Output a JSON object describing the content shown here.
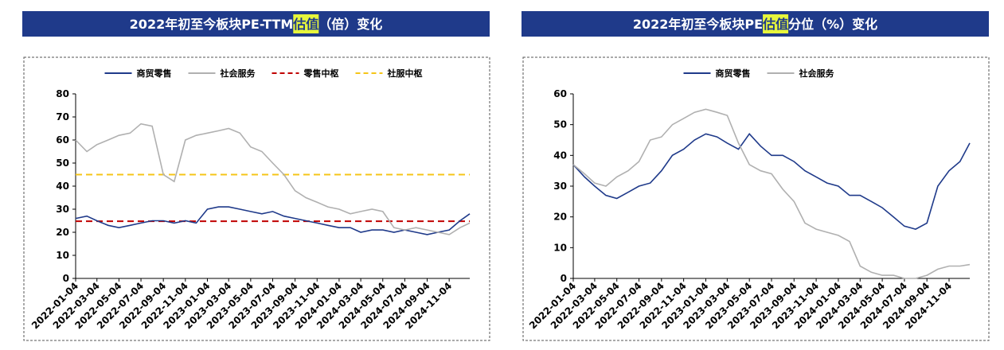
{
  "chart_data": [
    {
      "type": "line",
      "title": [
        "2022年初至今板块PE-TTM",
        "估值",
        "（倍）变化"
      ],
      "x": [
        "2022-01-04",
        "2022-02-04",
        "2022-03-04",
        "2022-04-04",
        "2022-05-04",
        "2022-06-04",
        "2022-07-04",
        "2022-08-04",
        "2022-09-04",
        "2022-10-04",
        "2022-11-04",
        "2022-12-04",
        "2023-01-04",
        "2023-02-04",
        "2023-03-04",
        "2023-04-04",
        "2023-05-04",
        "2023-06-04",
        "2023-07-04",
        "2023-08-04",
        "2023-09-04",
        "2023-10-04",
        "2023-11-04",
        "2023-12-04",
        "2024-01-04",
        "2024-02-04",
        "2024-03-04",
        "2024-04-04",
        "2024-05-04",
        "2024-06-04",
        "2024-07-04",
        "2024-08-04",
        "2024-09-04",
        "2024-10-04",
        "2024-11-04",
        "2024-12-04",
        "2024-12-31"
      ],
      "series": [
        {
          "name": "商贸零售",
          "color": "#1f3a8a",
          "values": [
            26,
            27,
            25,
            23,
            22,
            23,
            24,
            25,
            25,
            24,
            25,
            24,
            30,
            31,
            31,
            30,
            29,
            28,
            29,
            27,
            26,
            25,
            24,
            23,
            22,
            22,
            20,
            21,
            21,
            20,
            21,
            20,
            19,
            20,
            21,
            25,
            28
          ]
        },
        {
          "name": "社会服务",
          "color": "#b0b0b0",
          "values": [
            60,
            55,
            58,
            60,
            62,
            63,
            67,
            66,
            45,
            42,
            60,
            62,
            63,
            64,
            65,
            63,
            57,
            55,
            50,
            45,
            38,
            35,
            33,
            31,
            30,
            28,
            29,
            30,
            29,
            22,
            21,
            22,
            21,
            20,
            19,
            22,
            24
          ]
        },
        {
          "name": "零售中枢",
          "color": "#c00000",
          "hline": 24.8
        },
        {
          "name": "社服中枢",
          "color": "#f5c518",
          "hline": 45
        }
      ],
      "xlim": [
        "2022-01-04",
        "2024-12-31"
      ],
      "xticks": [
        "2022-01-04",
        "2022-03-04",
        "2022-05-04",
        "2022-07-04",
        "2022-09-04",
        "2022-11-04",
        "2023-01-04",
        "2023-03-04",
        "2023-05-04",
        "2023-07-04",
        "2023-09-04",
        "2023-11-04",
        "2024-01-04",
        "2024-03-04",
        "2024-05-04",
        "2024-07-04",
        "2024-09-04",
        "2024-11-04"
      ],
      "ylim": [
        0,
        80
      ],
      "yticks": [
        0,
        10,
        20,
        30,
        40,
        50,
        60,
        70,
        80
      ]
    },
    {
      "type": "line",
      "title": [
        "2022年初至今板块PE",
        "估值",
        "分位（%）变化"
      ],
      "x": [
        "2022-01-04",
        "2022-02-04",
        "2022-03-04",
        "2022-04-04",
        "2022-05-04",
        "2022-06-04",
        "2022-07-04",
        "2022-08-04",
        "2022-09-04",
        "2022-10-04",
        "2022-11-04",
        "2022-12-04",
        "2023-01-04",
        "2023-02-04",
        "2023-03-04",
        "2023-04-04",
        "2023-05-04",
        "2023-06-04",
        "2023-07-04",
        "2023-08-04",
        "2023-09-04",
        "2023-10-04",
        "2023-11-04",
        "2023-12-04",
        "2024-01-04",
        "2024-02-04",
        "2024-03-04",
        "2024-04-04",
        "2024-05-04",
        "2024-06-04",
        "2024-07-04",
        "2024-08-04",
        "2024-09-04",
        "2024-10-04",
        "2024-11-04",
        "2024-12-04",
        "2024-12-31"
      ],
      "series": [
        {
          "name": "商贸零售",
          "color": "#1f3a8a",
          "values": [
            37,
            33,
            30,
            27,
            26,
            28,
            30,
            31,
            35,
            40,
            42,
            45,
            47,
            46,
            44,
            42,
            47,
            43,
            40,
            40,
            38,
            35,
            33,
            31,
            30,
            27,
            27,
            25,
            23,
            20,
            17,
            16,
            18,
            30,
            35,
            38,
            44
          ]
        },
        {
          "name": "社会服务",
          "color": "#b0b0b0",
          "values": [
            37,
            34,
            31,
            30,
            33,
            35,
            38,
            45,
            46,
            50,
            52,
            54,
            55,
            54,
            53,
            44,
            37,
            35,
            34,
            29,
            25,
            18,
            16,
            15,
            14,
            12,
            4,
            2,
            1,
            1,
            0,
            0,
            1,
            3,
            4,
            4,
            4.5
          ]
        }
      ],
      "xlim": [
        "2022-01-04",
        "2024-12-31"
      ],
      "xticks": [
        "2022-01-04",
        "2022-03-04",
        "2022-05-04",
        "2022-07-04",
        "2022-09-04",
        "2022-11-04",
        "2023-01-04",
        "2023-03-04",
        "2023-05-04",
        "2023-07-04",
        "2023-09-04",
        "2023-11-04",
        "2024-01-04",
        "2024-03-04",
        "2024-05-04",
        "2024-07-04",
        "2024-09-04",
        "2024-11-04"
      ],
      "ylim": [
        0,
        60
      ],
      "yticks": [
        0,
        10,
        20,
        30,
        40,
        50,
        60
      ]
    }
  ]
}
